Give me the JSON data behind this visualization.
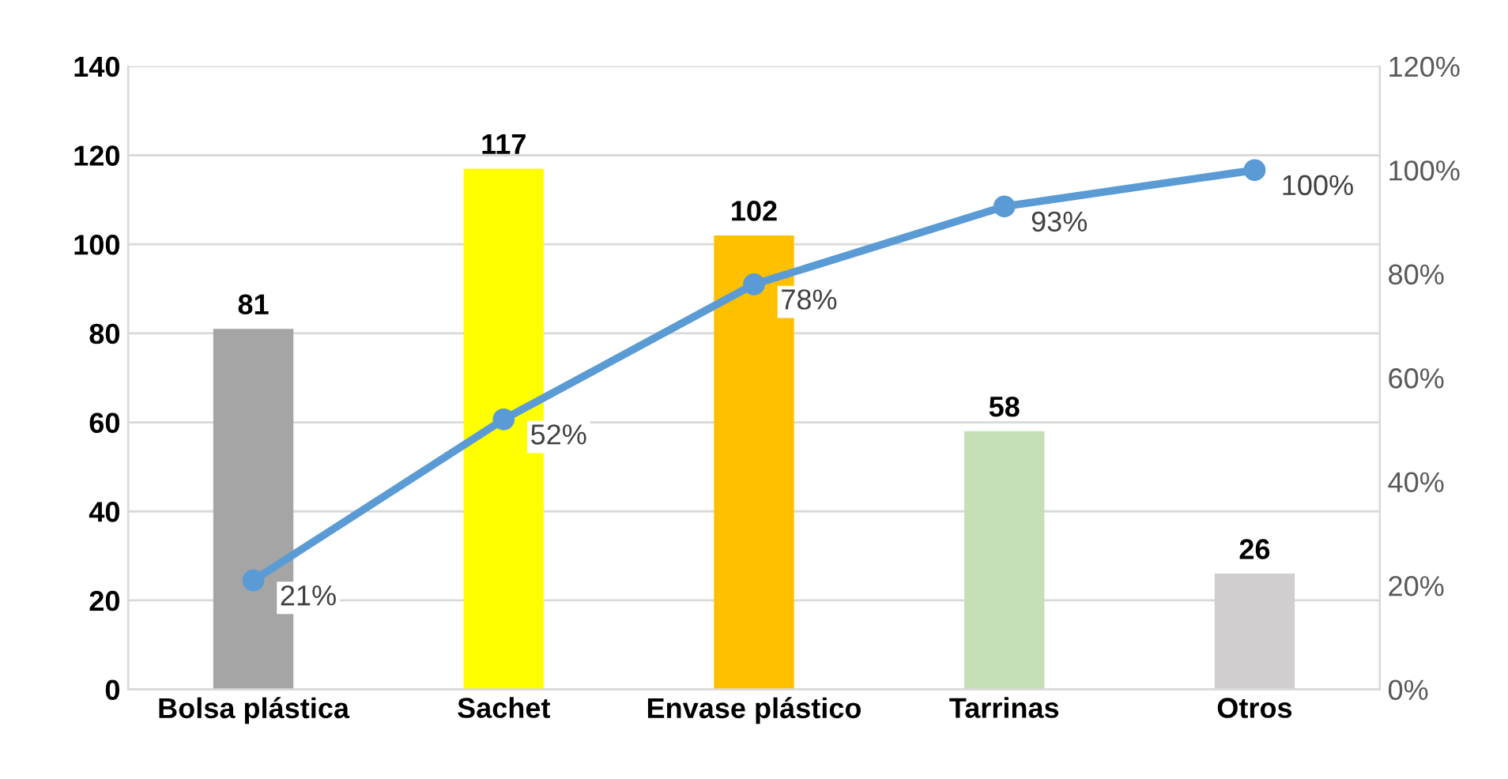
{
  "chart_data": {
    "type": "bar",
    "categories": [
      "Bolsa plástica",
      "Sachet",
      "Envase plástico",
      "Tarrinas",
      "Otros"
    ],
    "series": [
      {
        "colors": [
          "#a5a5a5",
          "#ffff00",
          "#ffc000",
          "#c5e0b4",
          "#d0cece"
        ],
        "values": [
          81,
          117,
          102,
          58,
          26
        ]
      },
      {
        "type": "line",
        "axis": "y2",
        "color": "#5b9bd5",
        "values": [
          21,
          52,
          78,
          93,
          100
        ],
        "value_labels": [
          "21%",
          "52%",
          "78%",
          "93%",
          "100%"
        ],
        "marker": "circle",
        "line_style": "solid"
      }
    ],
    "data_labels": true,
    "ylim": [
      0,
      140
    ],
    "yticks": [
      0,
      20,
      40,
      60,
      80,
      100,
      120,
      140
    ],
    "y2lim": [
      0,
      120
    ],
    "y2ticks": [
      {
        "value": 0,
        "label": "0%"
      },
      {
        "value": 20,
        "label": "20%"
      },
      {
        "value": 40,
        "label": "40%"
      },
      {
        "value": 60,
        "label": "60%"
      },
      {
        "value": 80,
        "label": "80%"
      },
      {
        "value": 100,
        "label": "100%"
      },
      {
        "value": 120,
        "label": "120%"
      }
    ],
    "grid": "y"
  }
}
